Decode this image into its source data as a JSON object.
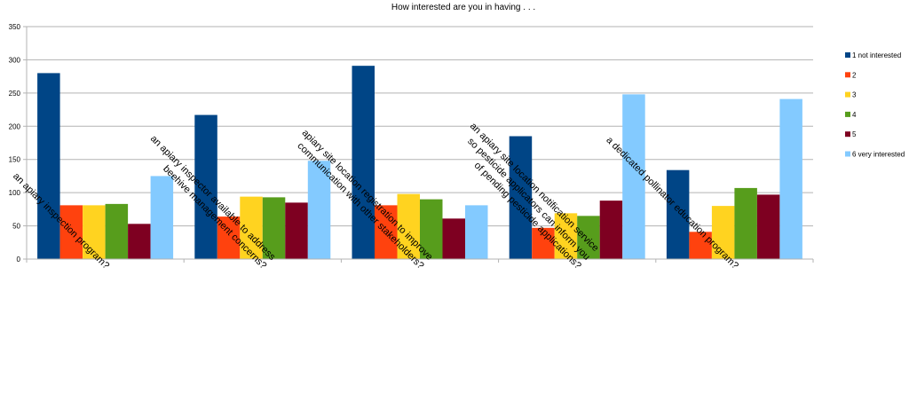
{
  "chart_data": {
    "type": "bar",
    "title": "How interested are you in having . . .",
    "xlabel": "",
    "ylabel": "",
    "ylim": [
      0,
      350
    ],
    "ytick_step": 50,
    "grid": true,
    "legend_position": "right",
    "categories": [
      [
        "an apiary inspection program?"
      ],
      [
        "an apiary inspector available to address",
        "beehive management concerns?"
      ],
      [
        "apiary site location registration to improve",
        "communication with other stakeholders?"
      ],
      [
        "an apiary site location notification service",
        "so pesticide applicators can inform you",
        "of pending pesticide applications?"
      ],
      [
        "a dedicated pollinator education program?"
      ]
    ],
    "series": [
      {
        "name": "1 not interested",
        "color": "#004586",
        "values": [
          280,
          217,
          291,
          185,
          134
        ]
      },
      {
        "name": "2",
        "color": "#ff420e",
        "values": [
          81,
          64,
          81,
          47,
          41
        ]
      },
      {
        "name": "3",
        "color": "#ffd320",
        "values": [
          81,
          94,
          98,
          69,
          80
        ]
      },
      {
        "name": "4",
        "color": "#579d1c",
        "values": [
          83,
          93,
          90,
          65,
          107
        ]
      },
      {
        "name": "5",
        "color": "#7e0021",
        "values": [
          53,
          85,
          61,
          88,
          97
        ]
      },
      {
        "name": "6 very interested",
        "color": "#83caff",
        "values": [
          125,
          148,
          81,
          248,
          241
        ]
      }
    ]
  }
}
